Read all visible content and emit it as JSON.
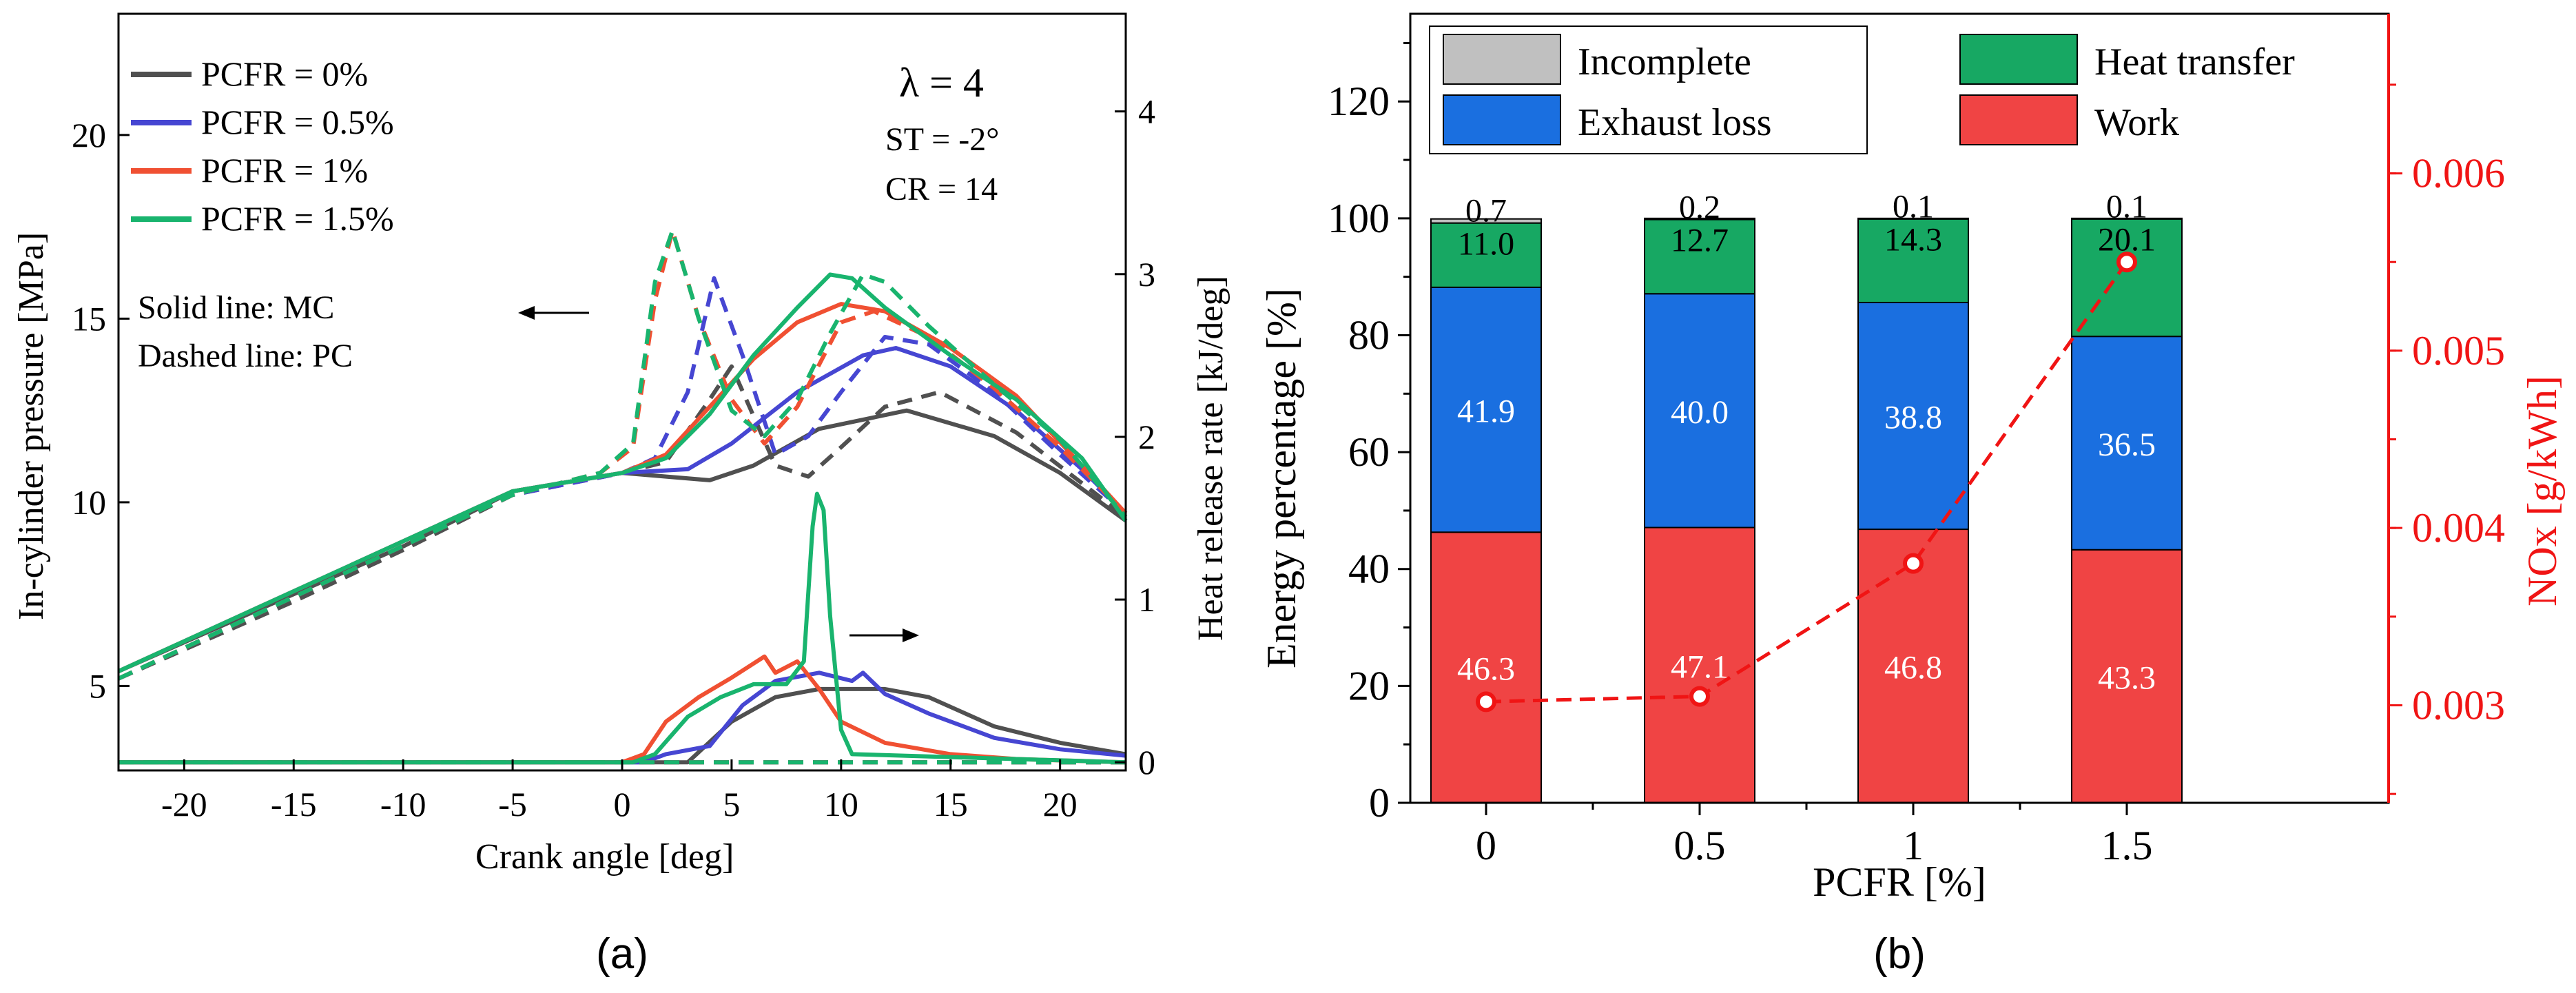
{
  "colors": {
    "pcfr0": "#505050",
    "pcfr05": "#4646d2",
    "pcfr1": "#f05032",
    "pcfr15": "#19b46e",
    "incomplete": "#c0c0c0",
    "exhaust": "#1a6fe0",
    "heat_transfer": "#17a863",
    "work": "#f04444",
    "nox": "#f01414"
  },
  "chart_data": [
    {
      "type": "line",
      "panel_label": "(a)",
      "xlabel": "Crank angle [deg]",
      "ylabel": "In-cylinder pressure [MPa]",
      "y2label": "Heat release rate [kJ/deg]",
      "xlim": [
        -23,
        23
      ],
      "ylim": [
        2.7,
        23.3
      ],
      "y2lim": [
        -0.05,
        4.6
      ],
      "xticks": [
        "-20",
        "-15",
        "-10",
        "-5",
        "0",
        "5",
        "10",
        "15",
        "20"
      ],
      "yticks": [
        "5",
        "10",
        "15",
        "20"
      ],
      "y2ticks": [
        "0",
        "1",
        "2",
        "3",
        "4"
      ],
      "annotations": {
        "lambda": "λ = 4",
        "st": "ST = -2°",
        "cr": "CR = 14",
        "solid": "Solid line: MC",
        "dashed": "Dashed line: PC"
      },
      "legend": [
        "PCFR = 0%",
        "PCFR = 0.5%",
        "PCFR = 1%",
        "PCFR = 1.5%"
      ],
      "series": [
        {
          "name": "PCFR = 0%",
          "pressure_mc": [
            [
              -23,
              5.4
            ],
            [
              -15,
              7.5
            ],
            [
              -10,
              8.8
            ],
            [
              -5,
              10.3
            ],
            [
              0,
              10.8
            ],
            [
              4,
              10.6
            ],
            [
              6,
              11.0
            ],
            [
              9,
              12.0
            ],
            [
              13,
              12.5
            ],
            [
              17,
              11.8
            ],
            [
              20,
              10.8
            ],
            [
              23,
              9.5
            ]
          ],
          "pressure_pc": [
            [
              -23,
              5.2
            ],
            [
              -15,
              7.3
            ],
            [
              -10,
              8.7
            ],
            [
              -5,
              10.2
            ],
            [
              0,
              10.8
            ],
            [
              2,
              11.1
            ],
            [
              4,
              12.8
            ],
            [
              5,
              13.7
            ],
            [
              7,
              11.0
            ],
            [
              8.5,
              10.7
            ],
            [
              10,
              11.5
            ],
            [
              12,
              12.6
            ],
            [
              14.5,
              13.0
            ],
            [
              18,
              11.9
            ],
            [
              23,
              9.6
            ]
          ],
          "hrr_mc": [
            [
              -23,
              0.0
            ],
            [
              3,
              0.0
            ],
            [
              5,
              0.25
            ],
            [
              7,
              0.4
            ],
            [
              9,
              0.45
            ],
            [
              12,
              0.45
            ],
            [
              14,
              0.4
            ],
            [
              17,
              0.22
            ],
            [
              20,
              0.12
            ],
            [
              23,
              0.05
            ]
          ],
          "hrr_pc": [
            [
              -23,
              0.0
            ],
            [
              23,
              0.0
            ]
          ]
        },
        {
          "name": "PCFR = 0.5%",
          "pressure_mc": [
            [
              -23,
              5.4
            ],
            [
              -5,
              10.3
            ],
            [
              0,
              10.8
            ],
            [
              3,
              10.9
            ],
            [
              5,
              11.6
            ],
            [
              8,
              13.0
            ],
            [
              11,
              14.0
            ],
            [
              12.5,
              14.2
            ],
            [
              15,
              13.7
            ],
            [
              18,
              12.5
            ],
            [
              21,
              10.9
            ],
            [
              23,
              9.7
            ]
          ],
          "pressure_pc": [
            [
              -23,
              5.2
            ],
            [
              -5,
              10.2
            ],
            [
              0,
              10.8
            ],
            [
              1.5,
              11.2
            ],
            [
              3,
              13.0
            ],
            [
              4.2,
              16.1
            ],
            [
              5.5,
              14.0
            ],
            [
              7,
              11.3
            ],
            [
              8.5,
              11.8
            ],
            [
              10,
              13.0
            ],
            [
              12,
              14.5
            ],
            [
              14,
              14.3
            ],
            [
              17,
              13.0
            ],
            [
              20,
              11.3
            ],
            [
              23,
              9.7
            ]
          ],
          "hrr_mc": [
            [
              -23,
              0.0
            ],
            [
              1,
              0.0
            ],
            [
              2,
              0.05
            ],
            [
              4,
              0.1
            ],
            [
              5.5,
              0.35
            ],
            [
              7,
              0.5
            ],
            [
              9,
              0.55
            ],
            [
              10.5,
              0.5
            ],
            [
              11,
              0.55
            ],
            [
              12,
              0.42
            ],
            [
              14,
              0.3
            ],
            [
              17,
              0.15
            ],
            [
              20,
              0.08
            ],
            [
              23,
              0.04
            ]
          ],
          "hrr_pc": [
            [
              -23,
              0.0
            ],
            [
              23,
              0.0
            ]
          ]
        },
        {
          "name": "PCFR = 1%",
          "pressure_mc": [
            [
              -23,
              5.4
            ],
            [
              -5,
              10.3
            ],
            [
              0,
              10.8
            ],
            [
              2,
              11.3
            ],
            [
              4,
              12.6
            ],
            [
              6,
              13.9
            ],
            [
              8,
              14.9
            ],
            [
              10,
              15.4
            ],
            [
              12,
              15.2
            ],
            [
              15,
              14.2
            ],
            [
              18,
              12.9
            ],
            [
              21,
              11.0
            ],
            [
              23,
              9.7
            ]
          ],
          "pressure_pc": [
            [
              -23,
              5.2
            ],
            [
              -5,
              10.2
            ],
            [
              -1,
              10.8
            ],
            [
              0.5,
              11.5
            ],
            [
              1.5,
              15.5
            ],
            [
              2.3,
              17.4
            ],
            [
              3.5,
              15.0
            ],
            [
              5,
              12.8
            ],
            [
              6.5,
              11.6
            ],
            [
              8,
              12.6
            ],
            [
              10,
              14.9
            ],
            [
              11.5,
              15.2
            ],
            [
              14,
              14.5
            ],
            [
              17,
              13.1
            ],
            [
              20,
              11.5
            ],
            [
              23,
              9.7
            ]
          ],
          "hrr_mc": [
            [
              -23,
              0.0
            ],
            [
              0,
              0.0
            ],
            [
              1,
              0.05
            ],
            [
              2,
              0.25
            ],
            [
              3.5,
              0.4
            ],
            [
              5,
              0.52
            ],
            [
              6.5,
              0.65
            ],
            [
              7,
              0.55
            ],
            [
              8,
              0.62
            ],
            [
              9,
              0.45
            ],
            [
              10,
              0.25
            ],
            [
              12,
              0.12
            ],
            [
              15,
              0.05
            ],
            [
              18,
              0.02
            ],
            [
              23,
              0.0
            ]
          ],
          "hrr_pc": [
            [
              -23,
              0.0
            ],
            [
              23,
              0.0
            ]
          ]
        },
        {
          "name": "PCFR = 1.5%",
          "pressure_mc": [
            [
              -23,
              5.4
            ],
            [
              -5,
              10.3
            ],
            [
              0,
              10.8
            ],
            [
              2,
              11.2
            ],
            [
              4,
              12.4
            ],
            [
              6,
              14.0
            ],
            [
              8,
              15.3
            ],
            [
              9.5,
              16.2
            ],
            [
              10.5,
              16.1
            ],
            [
              12,
              15.3
            ],
            [
              15,
              14.0
            ],
            [
              18,
              12.8
            ],
            [
              21,
              11.2
            ],
            [
              23,
              9.5
            ]
          ],
          "pressure_pc": [
            [
              -23,
              5.2
            ],
            [
              -5,
              10.2
            ],
            [
              -1,
              10.8
            ],
            [
              0.5,
              11.6
            ],
            [
              1.5,
              16.0
            ],
            [
              2.3,
              17.4
            ],
            [
              3.5,
              15.0
            ],
            [
              5,
              12.5
            ],
            [
              6.5,
              11.8
            ],
            [
              8,
              12.8
            ],
            [
              9.5,
              14.6
            ],
            [
              11,
              16.2
            ],
            [
              12,
              16.0
            ],
            [
              14,
              14.8
            ],
            [
              17,
              13.2
            ],
            [
              20,
              11.7
            ],
            [
              23,
              9.6
            ]
          ],
          "hrr_mc": [
            [
              -23,
              0.0
            ],
            [
              0.5,
              0.0
            ],
            [
              1.5,
              0.05
            ],
            [
              3,
              0.28
            ],
            [
              4.5,
              0.4
            ],
            [
              6,
              0.48
            ],
            [
              7.5,
              0.48
            ],
            [
              8.3,
              0.62
            ],
            [
              8.7,
              1.45
            ],
            [
              8.9,
              1.65
            ],
            [
              9.2,
              1.55
            ],
            [
              9.5,
              0.9
            ],
            [
              10,
              0.2
            ],
            [
              10.5,
              0.05
            ],
            [
              23,
              0.0
            ]
          ],
          "hrr_pc": [
            [
              -23,
              0.0
            ],
            [
              23,
              0.0
            ]
          ]
        }
      ]
    },
    {
      "type": "bar",
      "stacked": true,
      "panel_label": "(b)",
      "xlabel": "PCFR [%]",
      "ylabel": "Energy percentage [%]",
      "y2label": "NOx [g/kWh]",
      "categories": [
        "0",
        "0.5",
        "1",
        "1.5"
      ],
      "ylim": [
        0,
        135
      ],
      "yticks": [
        "0",
        "20",
        "40",
        "60",
        "80",
        "100",
        "120"
      ],
      "y2lim": [
        0.00245,
        0.0069
      ],
      "y2ticks": [
        "0.003",
        "0.004",
        "0.005",
        "0.006"
      ],
      "legend": [
        "Incomplete",
        "Heat transfer",
        "Exhaust loss",
        "Work"
      ],
      "series": [
        {
          "name": "Work",
          "values": [
            46.3,
            47.1,
            46.8,
            43.3
          ],
          "labels": [
            "46.3",
            "47.1",
            "46.8",
            "43.3"
          ]
        },
        {
          "name": "Exhaust loss",
          "values": [
            41.9,
            40.0,
            38.8,
            36.5
          ],
          "labels": [
            "41.9",
            "40.0",
            "38.8",
            "36.5"
          ]
        },
        {
          "name": "Heat transfer",
          "values": [
            11.0,
            12.7,
            14.3,
            20.1
          ],
          "labels": [
            "11.0",
            "12.7",
            "14.3",
            "20.1"
          ]
        },
        {
          "name": "Incomplete",
          "values": [
            0.7,
            0.2,
            0.1,
            0.1
          ],
          "labels": [
            "0.7",
            "0.2",
            "0.1",
            "0.1"
          ]
        }
      ],
      "nox": {
        "name": "NOx",
        "values": [
          0.00302,
          0.00305,
          0.0038,
          0.0055
        ]
      }
    }
  ]
}
